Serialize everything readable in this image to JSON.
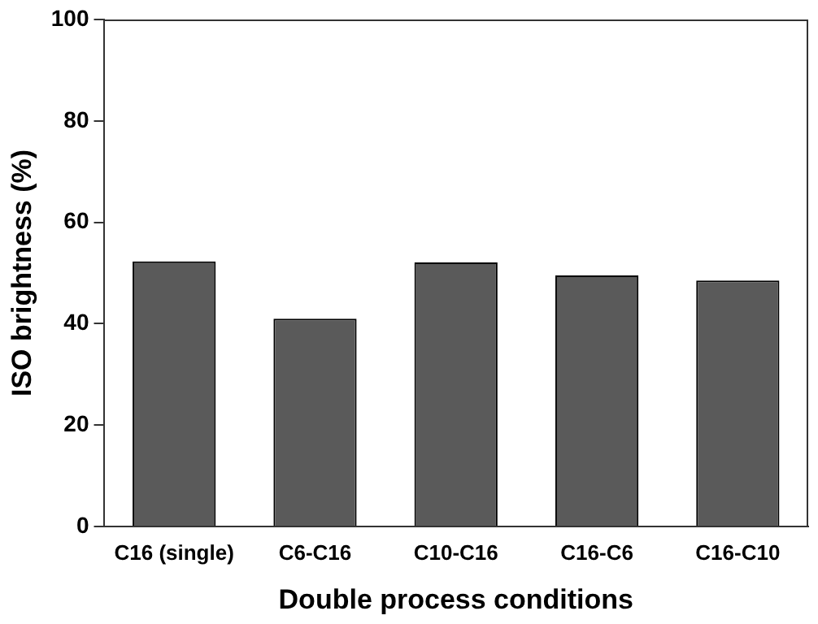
{
  "chart_data": {
    "type": "bar",
    "xlabel": "Double process conditions",
    "ylabel": "ISO brightness (%)",
    "categories": [
      "C16 (single)",
      "C6-C16",
      "C10-C16",
      "C16-C6",
      "C16-C10"
    ],
    "values": [
      52.3,
      41.0,
      52.1,
      49.5,
      48.5
    ],
    "color": "#5a5a5a",
    "ylim": [
      0,
      100
    ],
    "yticks": [
      0,
      20,
      40,
      60,
      80,
      100
    ],
    "grid": false,
    "legend": false
  }
}
